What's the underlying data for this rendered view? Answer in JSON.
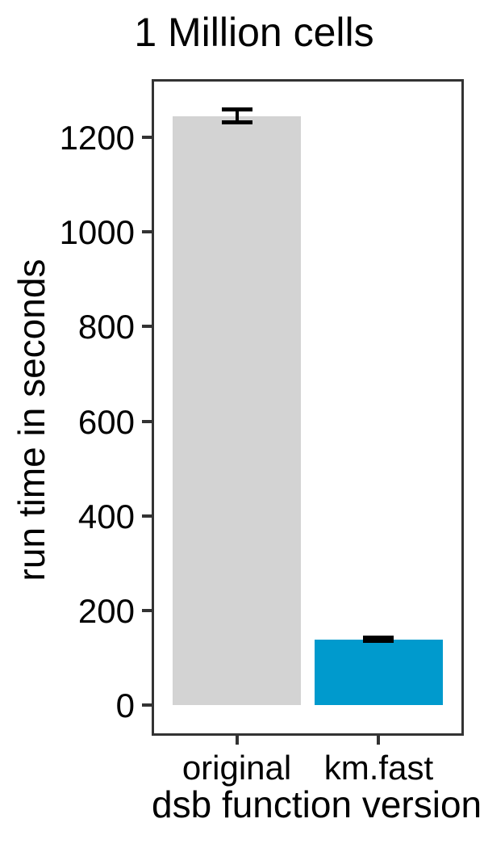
{
  "chart_data": {
    "type": "bar",
    "title": "1 Million cells",
    "xlabel": "dsb function version",
    "ylabel": "run time in seconds",
    "categories": [
      "original",
      "km.fast"
    ],
    "values": [
      1244,
      139
    ],
    "error_bars": [
      {
        "low": 1230,
        "high": 1258
      },
      {
        "low": 136,
        "high": 143
      }
    ],
    "bar_colors": [
      "#d3d3d3",
      "#009acd"
    ],
    "yticks": [
      0,
      200,
      400,
      600,
      800,
      1000,
      1200
    ],
    "ylim": [
      -64,
      1322
    ],
    "grid": false,
    "legend": false,
    "panel_border_color": "#333333",
    "tick_color": "#333333",
    "error_bar_color": "#000000",
    "text_color": "#000000",
    "background_color": "#ffffff"
  }
}
